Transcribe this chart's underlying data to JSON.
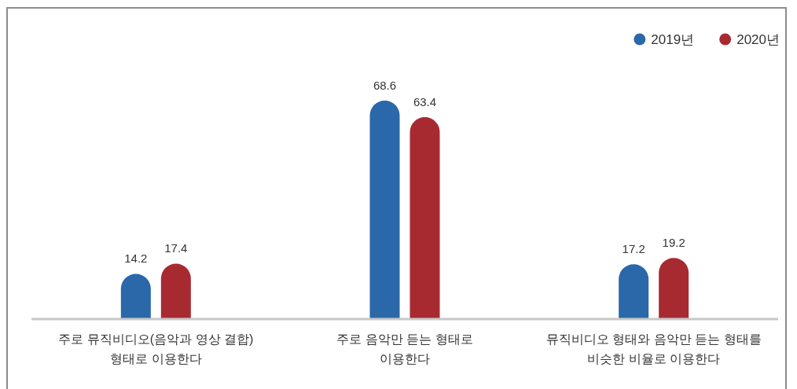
{
  "chart_data": {
    "type": "bar",
    "categories": [
      "주로 뮤직비디오(음악과 영상 결합)\n형태로 이용한다",
      "주로 음악만 듣는 형태로\n이용한다",
      "뮤직비디오 형태와 음악만 듣는 형태를\n비슷한 비율로 이용한다"
    ],
    "series": [
      {
        "name": "2019년",
        "color": "#2a68a9",
        "values": [
          14.2,
          68.6,
          17.2
        ]
      },
      {
        "name": "2020년",
        "color": "#a82a31",
        "values": [
          17.4,
          63.4,
          19.2
        ]
      }
    ],
    "data_labels": true,
    "legend": "top right"
  }
}
